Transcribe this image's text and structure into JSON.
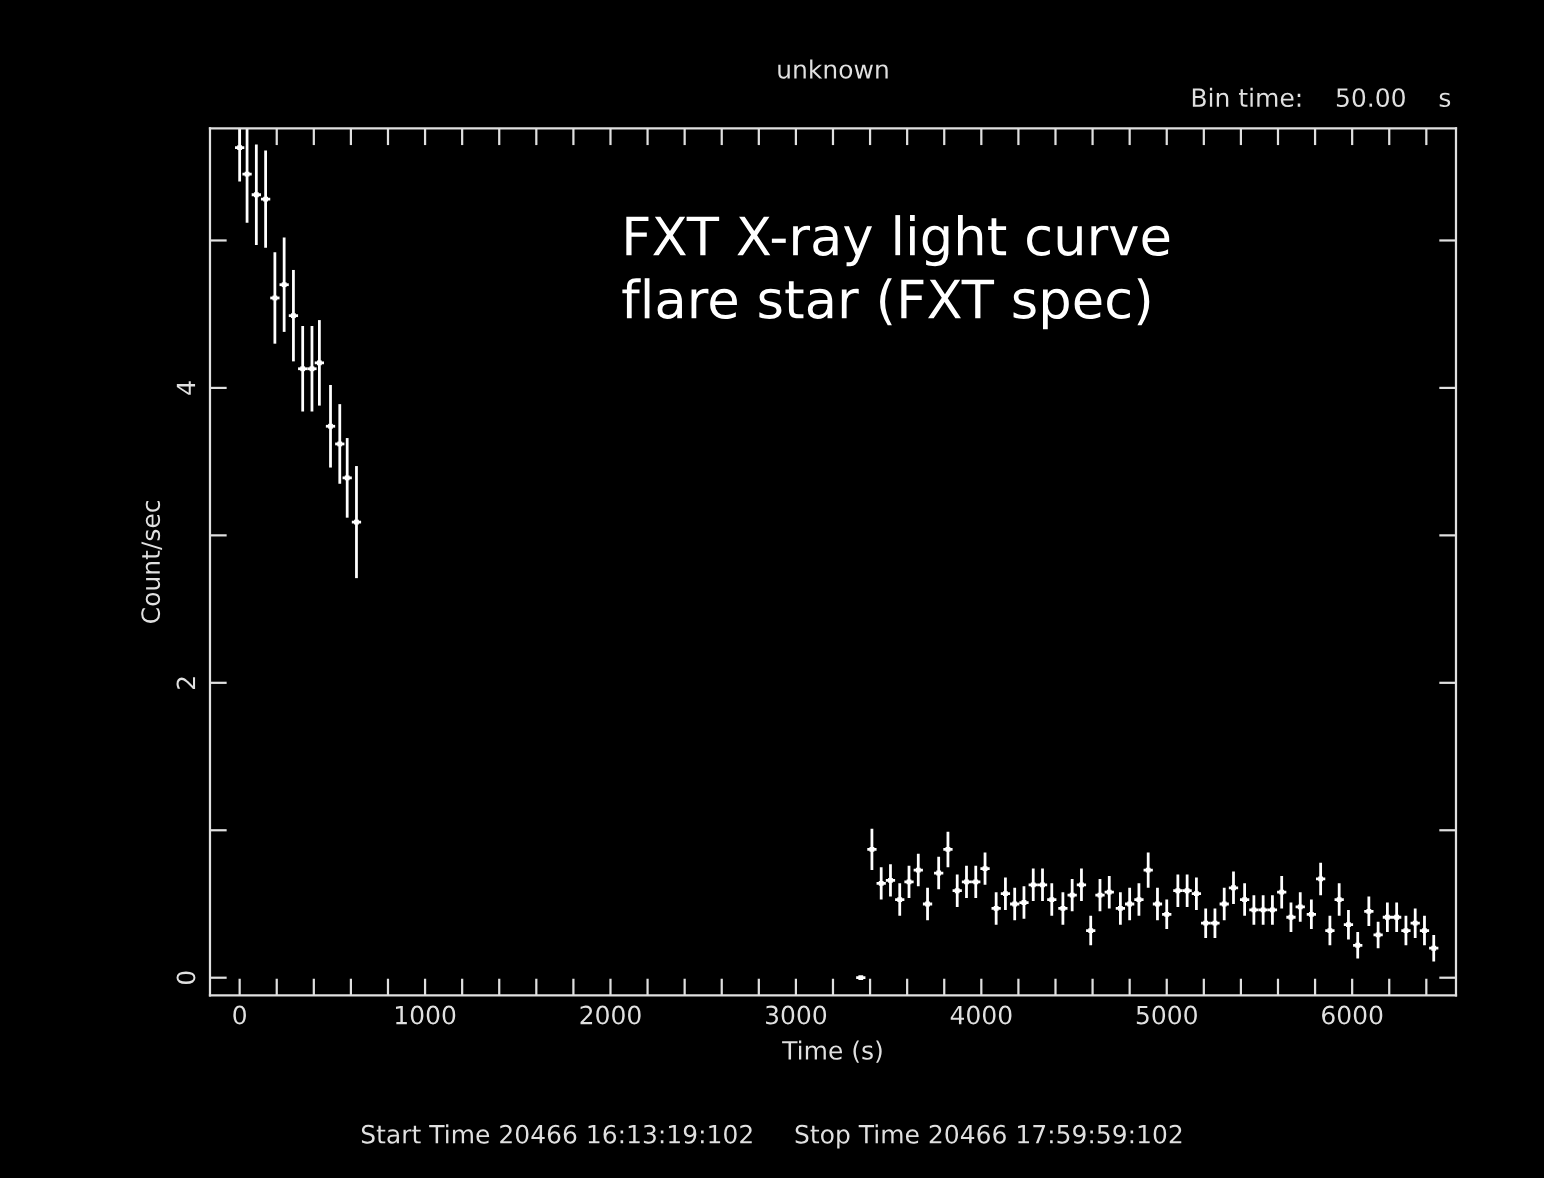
{
  "chart_data": {
    "type": "scatter",
    "title": "unknown",
    "xlabel": "Time (s)",
    "ylabel": "Count/sec",
    "annotations": [
      "Bin time:    50.00    s",
      "Start Time 20466 16:13:19:102     Stop Time 20466 17:59:59:102",
      "FXT X-ray light curve\nflare star (FXT spec)"
    ],
    "grid": false,
    "color": "#ffffff",
    "x": [
      0,
      40,
      90,
      140,
      190,
      240,
      290,
      340,
      390,
      430,
      490,
      540,
      580,
      630,
      3350,
      3410,
      3460,
      3510,
      3560,
      3610,
      3660,
      3710,
      3770,
      3820,
      3870,
      3920,
      3970,
      4020,
      4080,
      4130,
      4180,
      4230,
      4280,
      4330,
      4380,
      4440,
      4490,
      4540,
      4590,
      4640,
      4690,
      4750,
      4800,
      4850,
      4900,
      4950,
      5000,
      5060,
      5110,
      5160,
      5210,
      5260,
      5310,
      5360,
      5420,
      5470,
      5520,
      5570,
      5620,
      5670,
      5720,
      5780,
      5830,
      5880,
      5930,
      5980,
      6030,
      6090,
      6140,
      6190,
      6240,
      6290,
      6340,
      6390,
      6440
    ],
    "values": [
      5.63,
      5.45,
      5.31,
      5.28,
      4.61,
      4.7,
      4.49,
      4.13,
      4.13,
      4.17,
      3.74,
      3.62,
      3.39,
      3.09,
      0,
      0.87,
      0.64,
      0.66,
      0.53,
      0.65,
      0.73,
      0.5,
      0.71,
      0.87,
      0.59,
      0.65,
      0.65,
      0.74,
      0.47,
      0.57,
      0.5,
      0.51,
      0.63,
      0.63,
      0.53,
      0.47,
      0.56,
      0.63,
      0.32,
      0.56,
      0.58,
      0.47,
      0.5,
      0.53,
      0.73,
      0.5,
      0.43,
      0.59,
      0.59,
      0.57,
      0.37,
      0.37,
      0.5,
      0.61,
      0.53,
      0.46,
      0.46,
      0.46,
      0.58,
      0.41,
      0.48,
      0.43,
      0.67,
      0.32,
      0.53,
      0.36,
      0.22,
      0.45,
      0.29,
      0.41,
      0.41,
      0.32,
      0.37,
      0.32,
      0.2
    ],
    "errors": [
      0.23,
      0.33,
      0.34,
      0.33,
      0.31,
      0.32,
      0.31,
      0.29,
      0.29,
      0.29,
      0.28,
      0.27,
      0.27,
      0.38,
      null,
      0.14,
      0.11,
      0.11,
      0.11,
      0.11,
      0.11,
      0.11,
      0.11,
      0.12,
      0.11,
      0.11,
      0.11,
      0.11,
      0.11,
      0.11,
      0.11,
      0.11,
      0.11,
      0.11,
      0.11,
      0.11,
      0.11,
      0.11,
      0.1,
      0.11,
      0.11,
      0.11,
      0.11,
      0.11,
      0.12,
      0.11,
      0.1,
      0.11,
      0.11,
      0.11,
      0.1,
      0.1,
      0.11,
      0.11,
      0.11,
      0.1,
      0.1,
      0.1,
      0.11,
      0.1,
      0.1,
      0.1,
      0.11,
      0.1,
      0.11,
      0.1,
      0.09,
      0.1,
      0.09,
      0.1,
      0.1,
      0.1,
      0.1,
      0.1,
      0.09
    ],
    "xerrors": [
      25,
      25,
      25,
      25,
      25,
      25,
      25,
      25,
      25,
      25,
      25,
      25,
      25,
      25,
      25,
      25,
      25,
      25,
      25,
      25,
      25,
      25,
      25,
      25,
      25,
      25,
      25,
      25,
      25,
      25,
      25,
      25,
      25,
      25,
      25,
      25,
      25,
      25,
      25,
      25,
      25,
      25,
      25,
      25,
      25,
      25,
      25,
      25,
      25,
      25,
      25,
      25,
      25,
      25,
      25,
      25,
      25,
      25,
      25,
      25,
      25,
      25,
      25,
      25,
      25,
      25,
      25,
      25,
      25,
      25,
      25,
      25,
      25,
      25,
      25
    ],
    "xlim": [
      -160,
      6560
    ],
    "ylim": [
      -0.12,
      5.76
    ],
    "xticks": [
      0,
      {
        "value": 200,
        "label": null
      },
      {
        "value": 400,
        "label": null
      },
      {
        "value": 600,
        "label": null
      },
      {
        "value": 800,
        "label": null
      },
      1000,
      {
        "value": 1200,
        "label": null
      },
      {
        "value": 1400,
        "label": null
      },
      {
        "value": 1600,
        "label": null
      },
      {
        "value": 1800,
        "label": null
      },
      2000,
      {
        "value": 2200,
        "label": null
      },
      {
        "value": 2400,
        "label": null
      },
      {
        "value": 2600,
        "label": null
      },
      {
        "value": 2800,
        "label": null
      },
      3000,
      {
        "value": 3200,
        "label": null
      },
      {
        "value": 3400,
        "label": null
      },
      {
        "value": 3600,
        "label": null
      },
      {
        "value": 3800,
        "label": null
      },
      4000,
      {
        "value": 4200,
        "label": null
      },
      {
        "value": 4400,
        "label": null
      },
      {
        "value": 4600,
        "label": null
      },
      {
        "value": 4800,
        "label": null
      },
      5000,
      {
        "value": 5200,
        "label": null
      },
      {
        "value": 5400,
        "label": null
      },
      {
        "value": 5600,
        "label": null
      },
      {
        "value": 5800,
        "label": null
      },
      6000,
      {
        "value": 6200,
        "label": null
      },
      {
        "value": 6400,
        "label": null
      }
    ],
    "yticks": [
      0,
      {
        "value": 1,
        "label": null
      },
      2,
      {
        "value": 3,
        "label": null
      },
      4,
      {
        "value": 5,
        "label": null
      }
    ]
  }
}
